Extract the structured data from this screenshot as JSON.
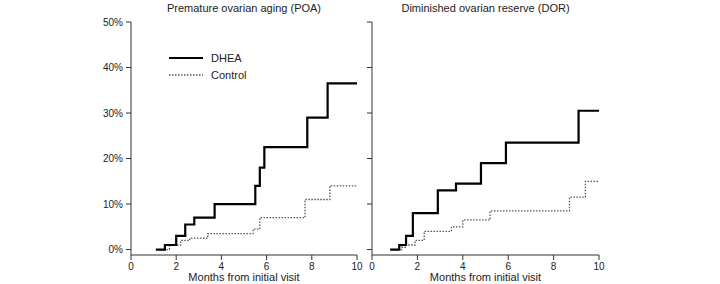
{
  "chart_data": [
    {
      "type": "line",
      "title": "Premature ovarian aging (POA)",
      "x_label": "Months from initial visit",
      "line_style": "step",
      "legend": "upper left",
      "tick_labels": true,
      "xlim": [
        0,
        10
      ],
      "xticks": [
        0,
        2,
        4,
        6,
        8,
        10
      ],
      "ylim": [
        -1.2,
        50
      ],
      "yticks": [
        {
          "value": 0,
          "label": "0%"
        },
        {
          "value": 10,
          "label": "10%"
        },
        {
          "value": 20,
          "label": "20%"
        },
        {
          "value": 30,
          "label": "30%"
        },
        {
          "value": 40,
          "label": "40%"
        },
        {
          "value": 50,
          "label": "50%"
        }
      ],
      "series": [
        {
          "name": "DHEA",
          "color": "#000000",
          "line_style": "solid",
          "x": [
            1.1,
            1.5,
            2.0,
            2.4,
            2.8,
            3.7,
            5.5,
            5.7,
            5.9,
            7.8,
            8.7,
            10
          ],
          "values": [
            0,
            1,
            3,
            5.5,
            7,
            10,
            14,
            18,
            22.5,
            29,
            36.5,
            36.5
          ]
        },
        {
          "name": "Control",
          "color": "#555555",
          "line_style": "dotted",
          "x": [
            1.3,
            1.7,
            2.2,
            2.6,
            3.4,
            5.4,
            5.7,
            7.7,
            8.8,
            10
          ],
          "values": [
            0,
            1,
            2,
            2.5,
            3.5,
            4.5,
            7,
            11,
            14,
            14
          ]
        }
      ]
    },
    {
      "type": "line",
      "title": "Diminished ovarian reserve (DOR)",
      "x_label": "Months from initial visit",
      "line_style": "step",
      "tick_labels": "x",
      "xlim": [
        0,
        10
      ],
      "xticks": [
        0,
        2,
        4,
        6,
        8,
        10
      ],
      "ylim": [
        -1.2,
        50
      ],
      "yticks": [
        0,
        10,
        20,
        30,
        40,
        50
      ],
      "series": [
        {
          "color": "#000000",
          "line_style": "solid",
          "x": [
            0.8,
            1.2,
            1.5,
            1.8,
            2.9,
            3.7,
            4.8,
            5.9,
            9.1,
            10
          ],
          "values": [
            0,
            1,
            3,
            8,
            13,
            14.5,
            19,
            23.5,
            30.5,
            30.5
          ]
        },
        {
          "color": "#555555",
          "line_style": "dotted",
          "x": [
            1.0,
            1.3,
            1.5,
            1.9,
            2.3,
            3.5,
            4.0,
            5.2,
            8.7,
            9.4,
            10
          ],
          "values": [
            0,
            0.5,
            1,
            2,
            4,
            5,
            6.5,
            8.5,
            11.5,
            15,
            15
          ]
        }
      ]
    }
  ]
}
